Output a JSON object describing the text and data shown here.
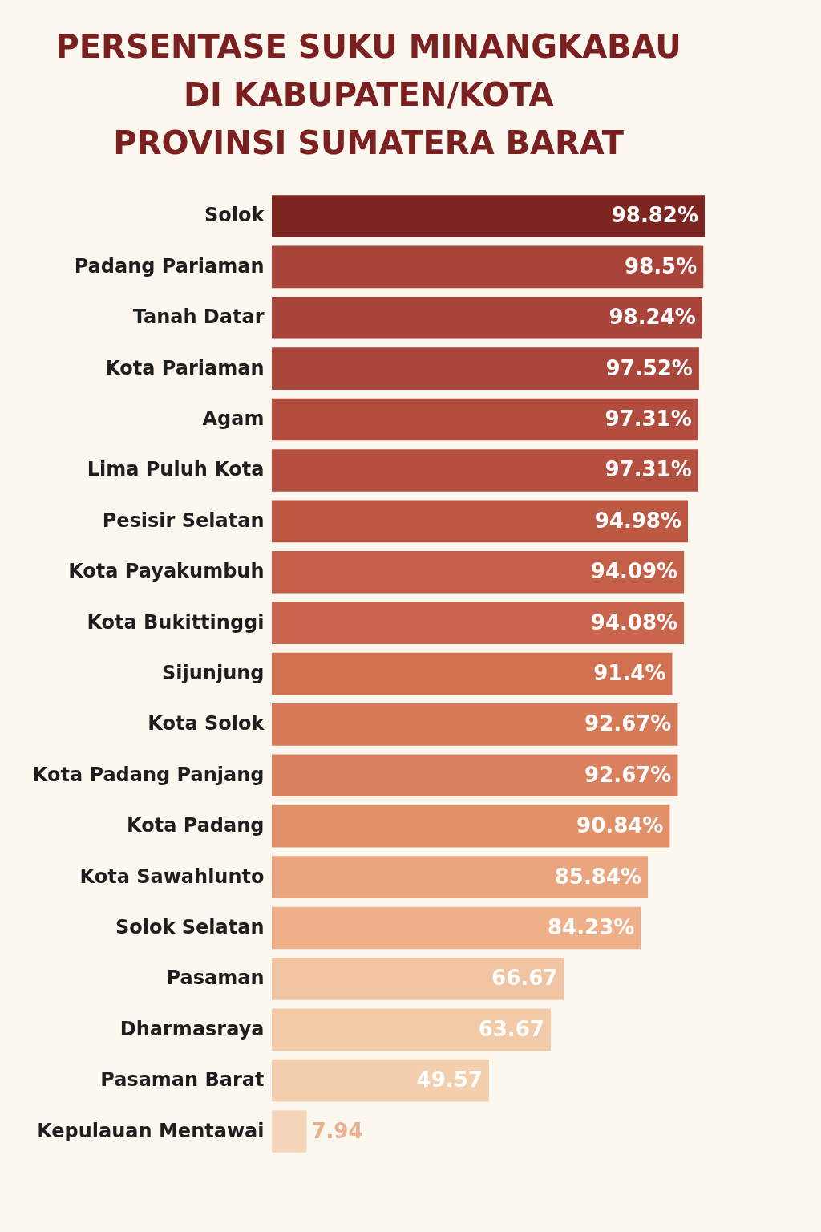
{
  "chart_data": {
    "type": "bar",
    "orientation": "horizontal",
    "title": "PERSENTASE SUKU MINANGKABAU\nDI KABUPATEN/KOTA\nPROVINSI SUMATERA BARAT",
    "categories": [
      "Solok",
      "Padang Pariaman",
      "Tanah Datar",
      "Kota Pariaman",
      "Agam",
      "Lima Puluh Kota",
      "Pesisir Selatan",
      "Kota Payakumbuh",
      "Kota Bukittinggi",
      "Sijunjung",
      "Kota Solok",
      "Kota Padang Panjang",
      "Kota Padang",
      "Kota Sawahlunto",
      "Solok Selatan",
      "Pasaman",
      "Dharmasraya",
      "Pasaman Barat",
      "Kepulauan Mentawai"
    ],
    "values": [
      98.82,
      98.5,
      98.24,
      97.52,
      97.31,
      97.31,
      94.98,
      94.09,
      94.08,
      91.4,
      92.67,
      92.67,
      90.84,
      85.84,
      84.23,
      66.67,
      63.67,
      49.57,
      7.94
    ],
    "value_labels": [
      "98.82%",
      "98.5%",
      "98.24%",
      "97.52%",
      "97.31%",
      "97.31%",
      "94.98%",
      "94.09%",
      "94.08%",
      "91.4%",
      "92.67%",
      "92.67%",
      "90.84%",
      "85.84%",
      "84.23%",
      "66.67",
      "63.67",
      "49.57",
      "7.94"
    ],
    "colors": [
      "#7d2520",
      "#a8443a",
      "#a8443a",
      "#ab463a",
      "#b24d3e",
      "#b54f40",
      "#bd5843",
      "#c45f48",
      "#c9654c",
      "#d0704f",
      "#d67a58",
      "#dc8160",
      "#e19068",
      "#eaa57f",
      "#eeb088",
      "#f1c4a3",
      "#f2caa8",
      "#f3cfb0",
      "#f4d5b8"
    ]
  }
}
